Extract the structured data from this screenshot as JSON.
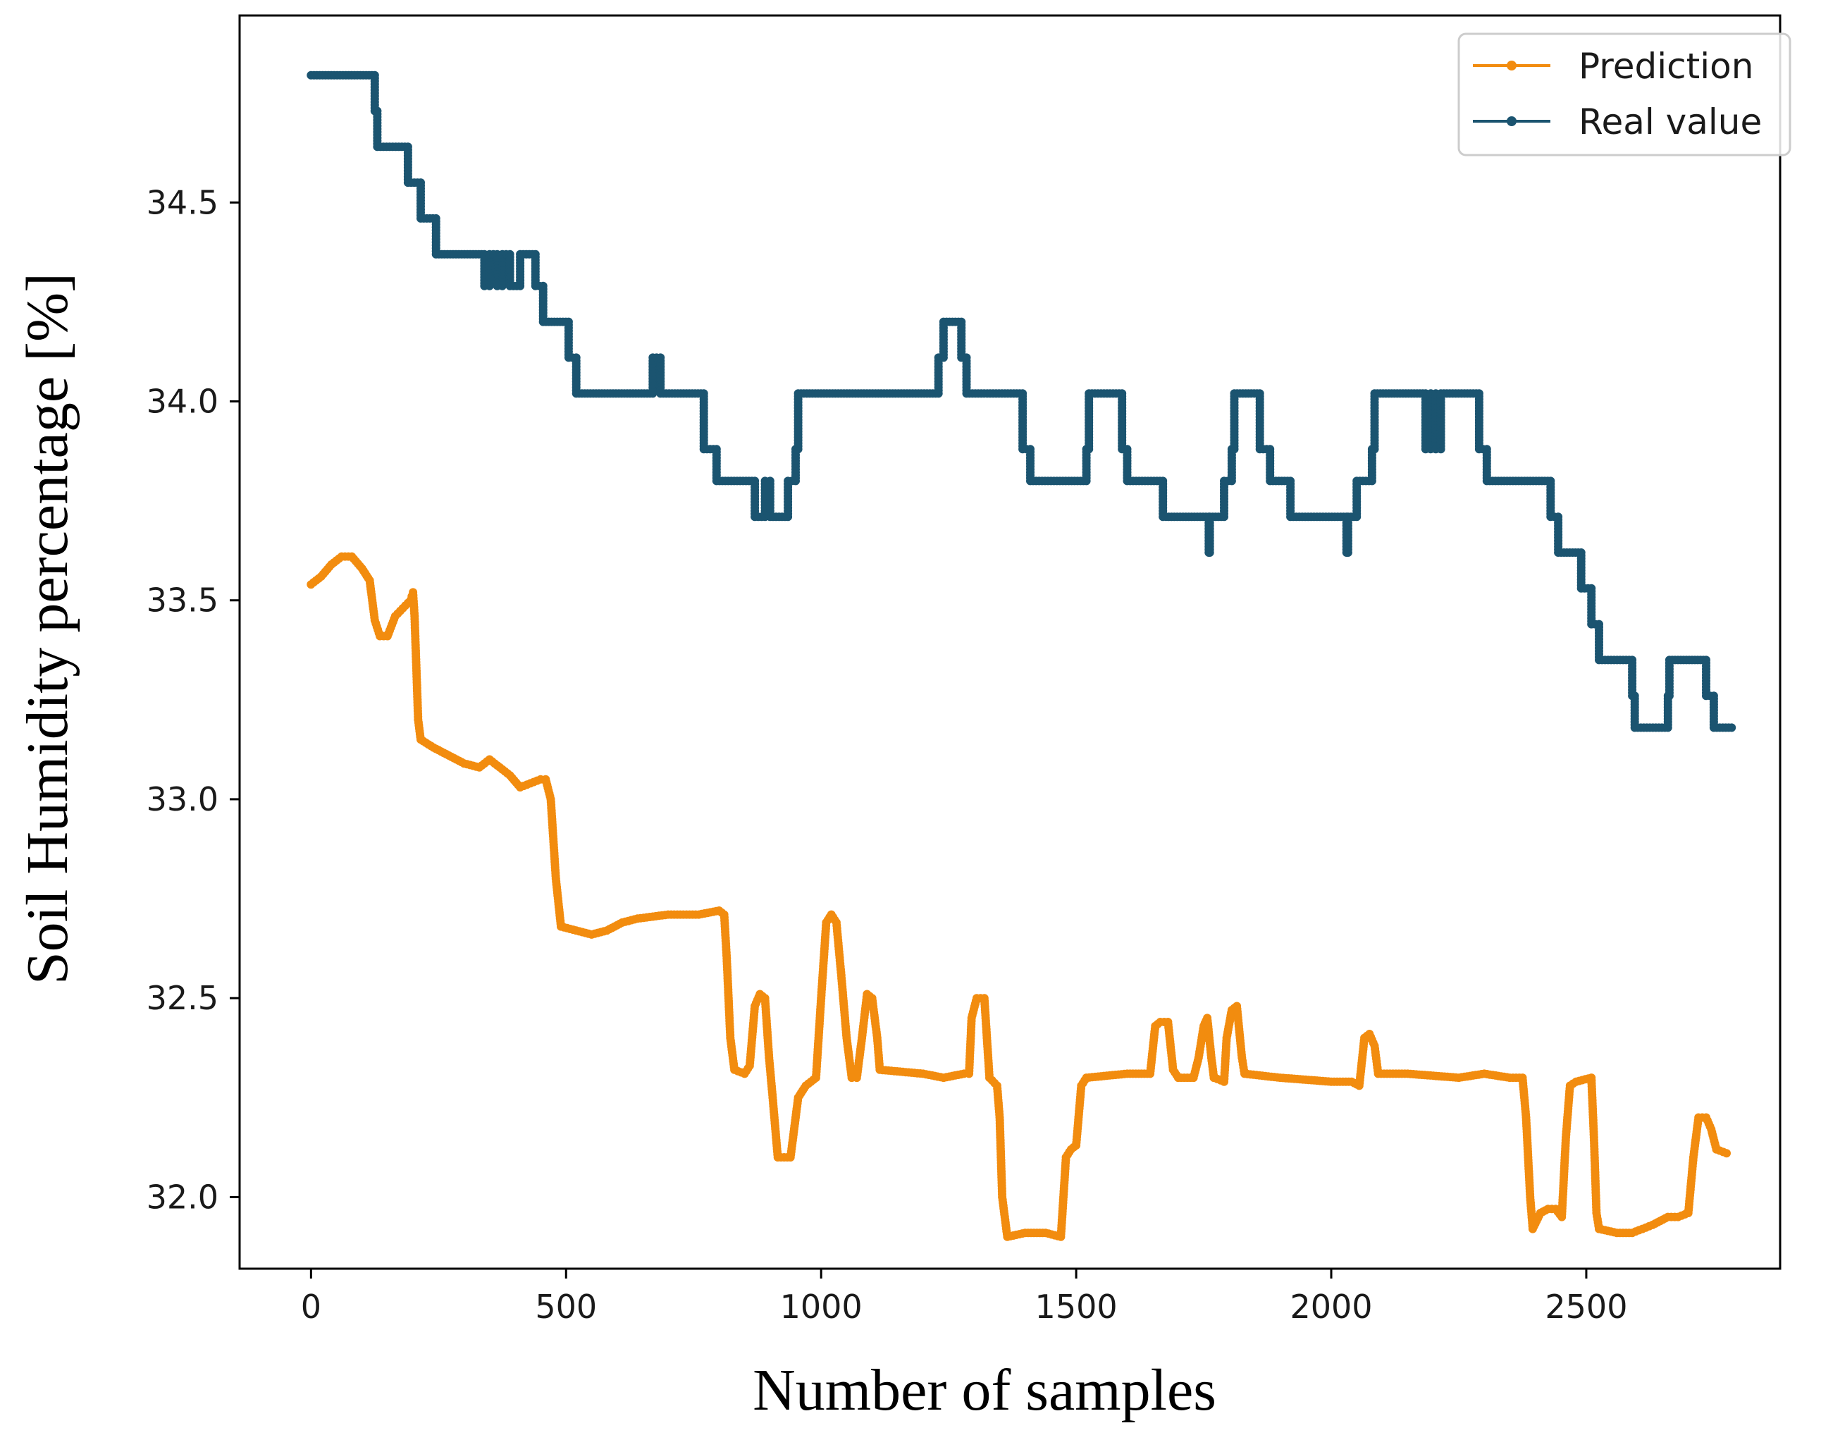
{
  "chart_data": {
    "type": "line",
    "title": "",
    "xlabel": "Number of samples",
    "ylabel": "Soil Humidity percentage [%]",
    "xlim": [
      -140,
      2880
    ],
    "ylim": [
      31.82,
      34.97
    ],
    "xticks": [
      0,
      500,
      1000,
      1500,
      2000,
      2500
    ],
    "xtick_labels": [
      "0",
      "500",
      "1000",
      "1500",
      "2000",
      "2500"
    ],
    "yticks": [
      32.0,
      32.5,
      33.0,
      33.5,
      34.0,
      34.5
    ],
    "ytick_labels": [
      "32.0",
      "32.5",
      "33.0",
      "33.5",
      "34.0",
      "34.5"
    ],
    "grid": false,
    "legend_position": "top-right",
    "series": [
      {
        "name": "Prediction",
        "color": "#f28c0f",
        "marker": "circle",
        "points": [
          [
            0,
            33.54
          ],
          [
            20,
            33.56
          ],
          [
            40,
            33.59
          ],
          [
            60,
            33.61
          ],
          [
            80,
            33.61
          ],
          [
            100,
            33.58
          ],
          [
            115,
            33.55
          ],
          [
            125,
            33.45
          ],
          [
            135,
            33.41
          ],
          [
            150,
            33.41
          ],
          [
            165,
            33.46
          ],
          [
            180,
            33.48
          ],
          [
            195,
            33.5
          ],
          [
            200,
            33.52
          ],
          [
            203,
            33.46
          ],
          [
            210,
            33.2
          ],
          [
            215,
            33.15
          ],
          [
            240,
            33.13
          ],
          [
            270,
            33.11
          ],
          [
            300,
            33.09
          ],
          [
            330,
            33.08
          ],
          [
            350,
            33.1
          ],
          [
            370,
            33.08
          ],
          [
            390,
            33.06
          ],
          [
            410,
            33.03
          ],
          [
            430,
            33.04
          ],
          [
            450,
            33.05
          ],
          [
            460,
            33.05
          ],
          [
            470,
            33.0
          ],
          [
            480,
            32.8
          ],
          [
            490,
            32.68
          ],
          [
            520,
            32.67
          ],
          [
            550,
            32.66
          ],
          [
            580,
            32.67
          ],
          [
            610,
            32.69
          ],
          [
            640,
            32.7
          ],
          [
            700,
            32.71
          ],
          [
            760,
            32.71
          ],
          [
            800,
            32.72
          ],
          [
            810,
            32.71
          ],
          [
            815,
            32.6
          ],
          [
            822,
            32.4
          ],
          [
            830,
            32.32
          ],
          [
            850,
            32.31
          ],
          [
            860,
            32.33
          ],
          [
            870,
            32.48
          ],
          [
            880,
            32.51
          ],
          [
            890,
            32.5
          ],
          [
            898,
            32.35
          ],
          [
            905,
            32.25
          ],
          [
            915,
            32.1
          ],
          [
            940,
            32.1
          ],
          [
            955,
            32.25
          ],
          [
            970,
            32.28
          ],
          [
            990,
            32.3
          ],
          [
            1000,
            32.5
          ],
          [
            1010,
            32.69
          ],
          [
            1020,
            32.71
          ],
          [
            1030,
            32.69
          ],
          [
            1040,
            32.55
          ],
          [
            1050,
            32.4
          ],
          [
            1060,
            32.3
          ],
          [
            1070,
            32.3
          ],
          [
            1080,
            32.4
          ],
          [
            1090,
            32.51
          ],
          [
            1100,
            32.5
          ],
          [
            1110,
            32.4
          ],
          [
            1115,
            32.32
          ],
          [
            1200,
            32.31
          ],
          [
            1240,
            32.3
          ],
          [
            1280,
            32.31
          ],
          [
            1290,
            32.31
          ],
          [
            1295,
            32.45
          ],
          [
            1305,
            32.5
          ],
          [
            1320,
            32.5
          ],
          [
            1325,
            32.4
          ],
          [
            1330,
            32.3
          ],
          [
            1345,
            32.28
          ],
          [
            1350,
            32.2
          ],
          [
            1355,
            32.0
          ],
          [
            1365,
            31.9
          ],
          [
            1400,
            31.91
          ],
          [
            1440,
            31.91
          ],
          [
            1470,
            31.9
          ],
          [
            1480,
            32.1
          ],
          [
            1490,
            32.12
          ],
          [
            1500,
            32.13
          ],
          [
            1510,
            32.28
          ],
          [
            1520,
            32.3
          ],
          [
            1600,
            32.31
          ],
          [
            1645,
            32.31
          ],
          [
            1655,
            32.43
          ],
          [
            1665,
            32.44
          ],
          [
            1680,
            32.44
          ],
          [
            1690,
            32.32
          ],
          [
            1700,
            32.3
          ],
          [
            1730,
            32.3
          ],
          [
            1740,
            32.35
          ],
          [
            1750,
            32.43
          ],
          [
            1757,
            32.45
          ],
          [
            1765,
            32.35
          ],
          [
            1770,
            32.3
          ],
          [
            1790,
            32.29
          ],
          [
            1795,
            32.4
          ],
          [
            1805,
            32.47
          ],
          [
            1815,
            32.48
          ],
          [
            1825,
            32.35
          ],
          [
            1830,
            32.31
          ],
          [
            1900,
            32.3
          ],
          [
            2000,
            32.29
          ],
          [
            2040,
            32.29
          ],
          [
            2055,
            32.28
          ],
          [
            2065,
            32.4
          ],
          [
            2075,
            32.41
          ],
          [
            2085,
            32.38
          ],
          [
            2092,
            32.31
          ],
          [
            2150,
            32.31
          ],
          [
            2250,
            32.3
          ],
          [
            2300,
            32.31
          ],
          [
            2350,
            32.3
          ],
          [
            2375,
            32.3
          ],
          [
            2382,
            32.2
          ],
          [
            2390,
            32.0
          ],
          [
            2395,
            31.92
          ],
          [
            2410,
            31.96
          ],
          [
            2425,
            31.97
          ],
          [
            2440,
            31.97
          ],
          [
            2452,
            31.95
          ],
          [
            2460,
            32.15
          ],
          [
            2468,
            32.28
          ],
          [
            2480,
            32.29
          ],
          [
            2510,
            32.3
          ],
          [
            2515,
            32.15
          ],
          [
            2520,
            31.96
          ],
          [
            2525,
            31.92
          ],
          [
            2560,
            31.91
          ],
          [
            2590,
            31.91
          ],
          [
            2610,
            31.92
          ],
          [
            2630,
            31.93
          ],
          [
            2660,
            31.95
          ],
          [
            2680,
            31.95
          ],
          [
            2700,
            31.96
          ],
          [
            2710,
            32.1
          ],
          [
            2720,
            32.2
          ],
          [
            2735,
            32.2
          ],
          [
            2745,
            32.17
          ],
          [
            2755,
            32.12
          ],
          [
            2775,
            32.11
          ]
        ]
      },
      {
        "name": "Real value",
        "color": "#1b5470",
        "marker": "circle",
        "points": [
          [
            0,
            34.82
          ],
          [
            125,
            34.82
          ],
          [
            125,
            34.73
          ],
          [
            130,
            34.73
          ],
          [
            130,
            34.64
          ],
          [
            190,
            34.64
          ],
          [
            190,
            34.55
          ],
          [
            215,
            34.55
          ],
          [
            215,
            34.46
          ],
          [
            245,
            34.46
          ],
          [
            245,
            34.37
          ],
          [
            340,
            34.37
          ],
          [
            340,
            34.29
          ],
          [
            350,
            34.29
          ],
          [
            350,
            34.37
          ],
          [
            365,
            34.37
          ],
          [
            365,
            34.29
          ],
          [
            375,
            34.29
          ],
          [
            375,
            34.37
          ],
          [
            390,
            34.37
          ],
          [
            390,
            34.29
          ],
          [
            410,
            34.29
          ],
          [
            410,
            34.37
          ],
          [
            440,
            34.37
          ],
          [
            440,
            34.29
          ],
          [
            455,
            34.29
          ],
          [
            455,
            34.2
          ],
          [
            505,
            34.2
          ],
          [
            505,
            34.11
          ],
          [
            520,
            34.11
          ],
          [
            520,
            34.02
          ],
          [
            670,
            34.02
          ],
          [
            670,
            34.11
          ],
          [
            685,
            34.11
          ],
          [
            685,
            34.02
          ],
          [
            770,
            34.02
          ],
          [
            770,
            33.88
          ],
          [
            795,
            33.88
          ],
          [
            795,
            33.8
          ],
          [
            870,
            33.8
          ],
          [
            870,
            33.71
          ],
          [
            890,
            33.71
          ],
          [
            890,
            33.8
          ],
          [
            900,
            33.8
          ],
          [
            900,
            33.71
          ],
          [
            935,
            33.71
          ],
          [
            935,
            33.8
          ],
          [
            950,
            33.8
          ],
          [
            950,
            33.88
          ],
          [
            955,
            33.88
          ],
          [
            955,
            34.02
          ],
          [
            1230,
            34.02
          ],
          [
            1230,
            34.11
          ],
          [
            1240,
            34.11
          ],
          [
            1240,
            34.2
          ],
          [
            1275,
            34.2
          ],
          [
            1275,
            34.11
          ],
          [
            1285,
            34.11
          ],
          [
            1285,
            34.02
          ],
          [
            1395,
            34.02
          ],
          [
            1395,
            33.88
          ],
          [
            1410,
            33.88
          ],
          [
            1410,
            33.8
          ],
          [
            1520,
            33.8
          ],
          [
            1520,
            33.88
          ],
          [
            1525,
            33.88
          ],
          [
            1525,
            34.02
          ],
          [
            1590,
            34.02
          ],
          [
            1590,
            33.88
          ],
          [
            1600,
            33.88
          ],
          [
            1600,
            33.8
          ],
          [
            1670,
            33.8
          ],
          [
            1670,
            33.71
          ],
          [
            1760,
            33.71
          ],
          [
            1760,
            33.62
          ],
          [
            1762,
            33.62
          ],
          [
            1762,
            33.71
          ],
          [
            1790,
            33.71
          ],
          [
            1790,
            33.8
          ],
          [
            1805,
            33.8
          ],
          [
            1805,
            33.88
          ],
          [
            1810,
            33.88
          ],
          [
            1810,
            34.02
          ],
          [
            1860,
            34.02
          ],
          [
            1860,
            33.88
          ],
          [
            1880,
            33.88
          ],
          [
            1880,
            33.8
          ],
          [
            1920,
            33.8
          ],
          [
            1920,
            33.71
          ],
          [
            2030,
            33.71
          ],
          [
            2030,
            33.62
          ],
          [
            2033,
            33.62
          ],
          [
            2033,
            33.71
          ],
          [
            2050,
            33.71
          ],
          [
            2050,
            33.8
          ],
          [
            2080,
            33.8
          ],
          [
            2080,
            33.88
          ],
          [
            2085,
            33.88
          ],
          [
            2085,
            34.02
          ],
          [
            2185,
            34.02
          ],
          [
            2185,
            33.88
          ],
          [
            2195,
            33.88
          ],
          [
            2195,
            34.02
          ],
          [
            2205,
            34.02
          ],
          [
            2205,
            33.88
          ],
          [
            2215,
            33.88
          ],
          [
            2215,
            34.02
          ],
          [
            2290,
            34.02
          ],
          [
            2290,
            33.88
          ],
          [
            2305,
            33.88
          ],
          [
            2305,
            33.8
          ],
          [
            2430,
            33.8
          ],
          [
            2430,
            33.71
          ],
          [
            2445,
            33.71
          ],
          [
            2445,
            33.62
          ],
          [
            2490,
            33.62
          ],
          [
            2490,
            33.53
          ],
          [
            2510,
            33.53
          ],
          [
            2510,
            33.44
          ],
          [
            2525,
            33.44
          ],
          [
            2525,
            33.35
          ],
          [
            2590,
            33.35
          ],
          [
            2590,
            33.26
          ],
          [
            2595,
            33.26
          ],
          [
            2595,
            33.18
          ],
          [
            2660,
            33.18
          ],
          [
            2660,
            33.26
          ],
          [
            2663,
            33.26
          ],
          [
            2663,
            33.35
          ],
          [
            2735,
            33.35
          ],
          [
            2735,
            33.26
          ],
          [
            2750,
            33.26
          ],
          [
            2750,
            33.18
          ],
          [
            2785,
            33.18
          ]
        ]
      }
    ]
  }
}
